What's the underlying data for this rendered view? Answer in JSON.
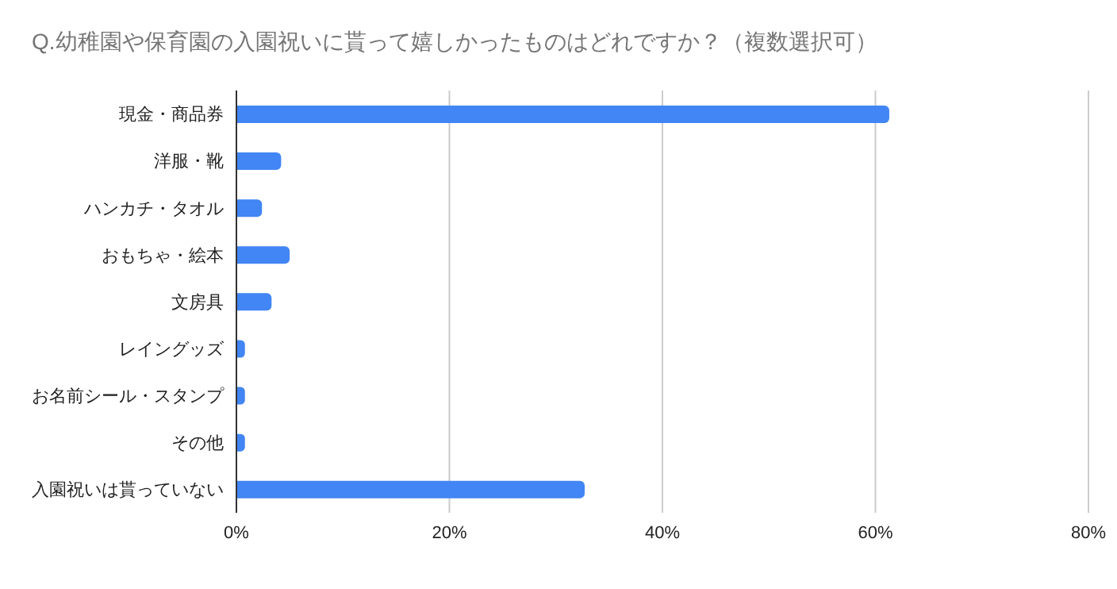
{
  "chart_data": {
    "type": "bar",
    "orientation": "horizontal",
    "title": "Q.幼稚園や保育園の入園祝いに貰って嬉しかったものはどれですか？（複数選択可）",
    "categories": [
      "現金・商品券",
      "洋服・靴",
      "ハンカチ・タオル",
      "おもちゃ・絵本",
      "文房具",
      "レイングッズ",
      "お名前シール・スタンプ",
      "その他",
      "入園祝いは貰っていない"
    ],
    "values": [
      61.3,
      4.2,
      2.4,
      5.0,
      3.3,
      0.8,
      0.8,
      0.8,
      32.7
    ],
    "color": "#4285f4",
    "xlim": [
      0,
      80
    ],
    "xticks": [
      {
        "value": 0,
        "label": "0%"
      },
      {
        "value": 20,
        "label": "20%"
      },
      {
        "value": 40,
        "label": "40%"
      },
      {
        "value": 60,
        "label": "60%"
      },
      {
        "value": 80,
        "label": "80%"
      }
    ],
    "grid": "x"
  }
}
